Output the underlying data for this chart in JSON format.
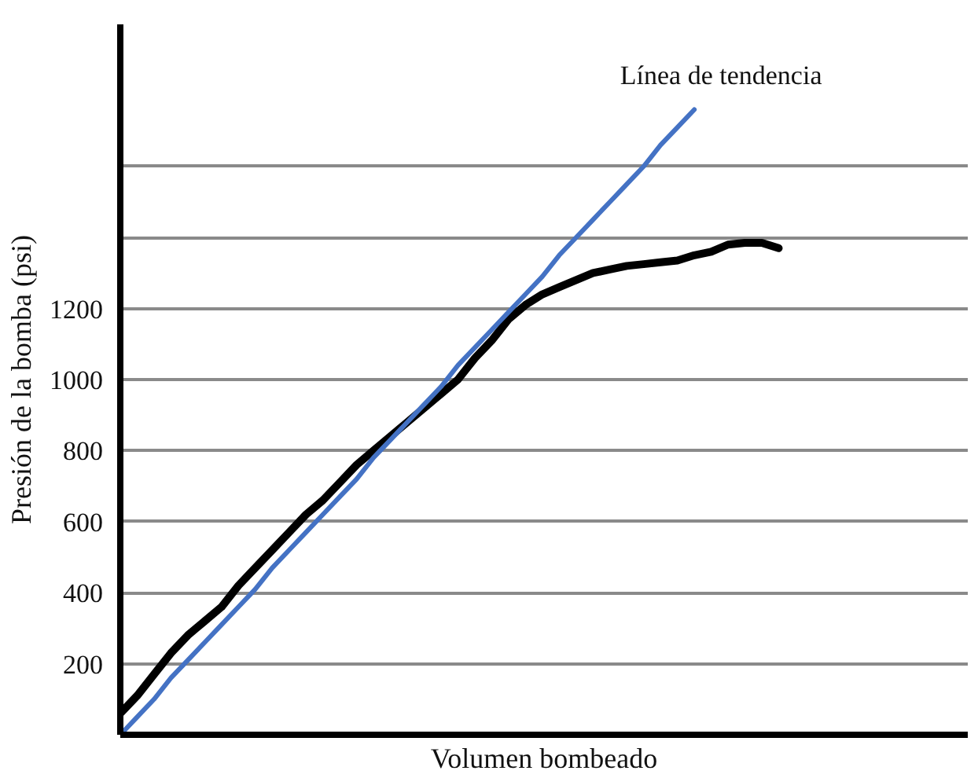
{
  "chart_data": {
    "type": "line",
    "xlabel": "Volumen bombeado",
    "ylabel": "Presión de la bomba (psi)",
    "categories": [
      null,
      null,
      null,
      null,
      null,
      null,
      null,
      null,
      null,
      null,
      null,
      null,
      null,
      null,
      null,
      null,
      null,
      null,
      null,
      null,
      null,
      null,
      null,
      null,
      null,
      null,
      null,
      null,
      null,
      null,
      null,
      null,
      null,
      null,
      null,
      null,
      null,
      null,
      null,
      null
    ],
    "series": [
      {
        "color": "#000000",
        "values": [
          60,
          110,
          170,
          230,
          280,
          320,
          360,
          420,
          470,
          520,
          570,
          620,
          660,
          710,
          760,
          800,
          840,
          880,
          920,
          960,
          1000,
          1060,
          1110,
          1170,
          1210,
          1240,
          1260,
          1280,
          1300,
          1310,
          1320,
          1325,
          1330,
          1335,
          1350,
          1360,
          1380,
          1385,
          1385,
          1370
        ]
      },
      {
        "name": "Línea de tendencia",
        "color": "#4472c4",
        "values": [
          0,
          50,
          100,
          160,
          210,
          260,
          310,
          360,
          410,
          470,
          520,
          570,
          620,
          670,
          720,
          780,
          830,
          880,
          930,
          980,
          1040,
          1090,
          1140,
          1190,
          1240,
          1290,
          1350,
          1400,
          1450,
          1500,
          1550,
          1600,
          1660,
          1710,
          1760,
          null,
          null,
          null,
          null,
          null
        ]
      }
    ],
    "ylim": [
      0,
      2000
    ],
    "yticks": [
      200,
      400,
      600,
      800,
      1000,
      1200,
      {
        "value": 1400,
        "label": null
      },
      {
        "value": 1600,
        "label": null
      }
    ],
    "grid": "y",
    "tick_labels": "y",
    "marker": "none",
    "line_style": "solid"
  }
}
